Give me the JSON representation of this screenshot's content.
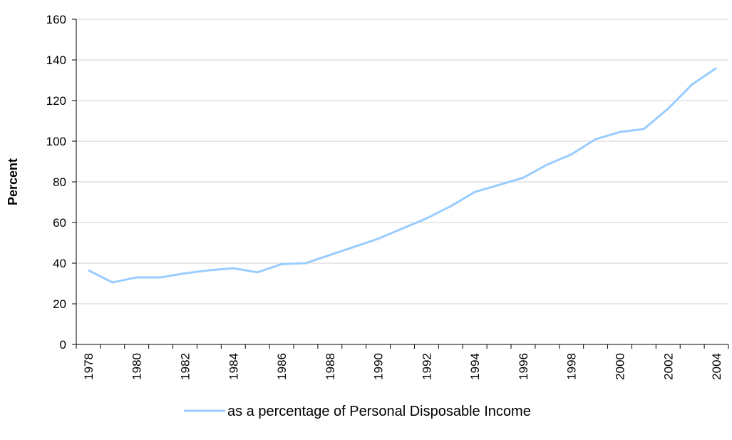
{
  "chart_data": {
    "type": "line",
    "y_label": "Percent",
    "categories": [
      "1978",
      null,
      "1980",
      null,
      "1982",
      null,
      "1984",
      null,
      "1986",
      null,
      "1988",
      null,
      "1990",
      null,
      "1992",
      null,
      "1994",
      null,
      "1996",
      null,
      "1998",
      null,
      "2000",
      null,
      "2002",
      null,
      "2004"
    ],
    "series": [
      {
        "name": "as a percentage of Personal Disposable Income",
        "color": "#99ccff",
        "values": [
          36.5,
          30.5,
          33,
          33,
          35,
          36.5,
          37.5,
          35.5,
          39.5,
          40,
          44,
          48,
          52,
          57,
          62,
          68,
          75,
          78.5,
          82,
          88.5,
          93.5,
          101,
          104.5,
          106,
          116,
          128,
          136
        ]
      }
    ],
    "ylim": [
      0,
      160
    ],
    "yticks": [
      0,
      20,
      40,
      60,
      80,
      100,
      120,
      140,
      160
    ],
    "grid": true,
    "legend": "bottom"
  }
}
